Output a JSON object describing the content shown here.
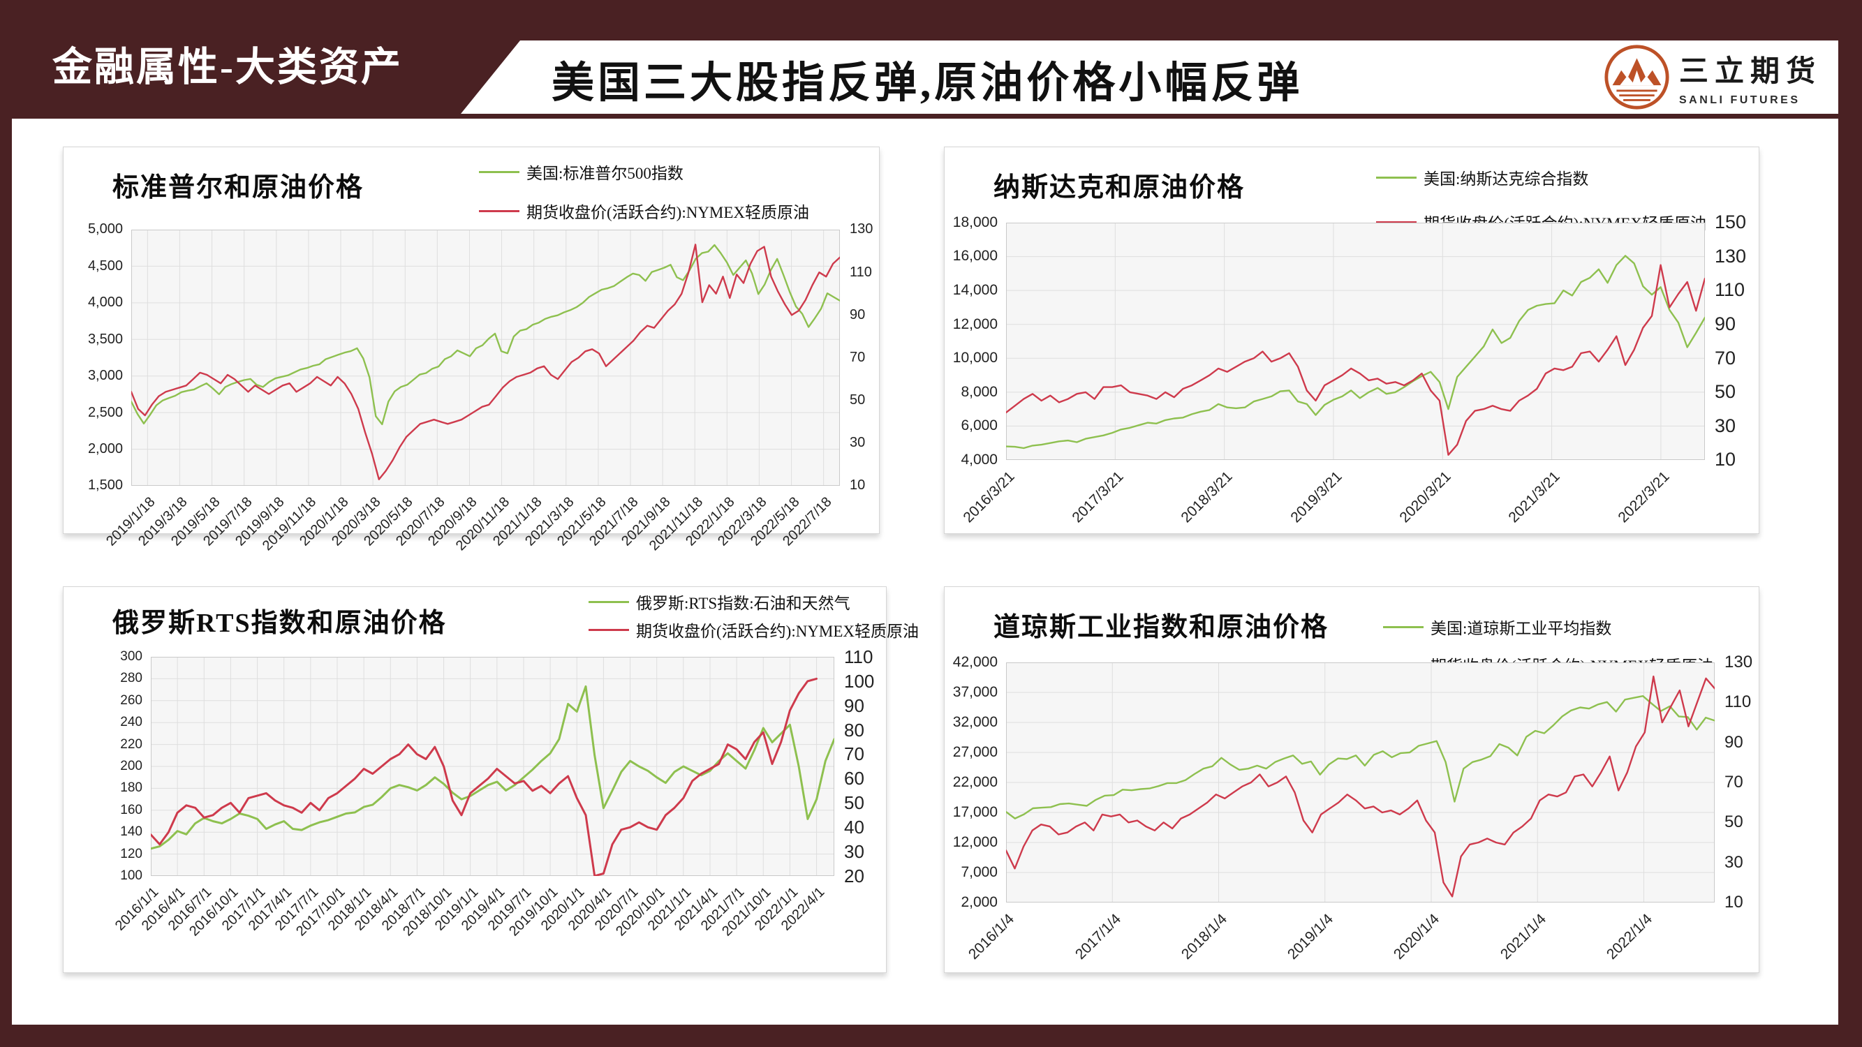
{
  "theme": {
    "maroon": "#4a2123",
    "panel_border": "#d6d6d6",
    "plot_background": "#f6f6f6",
    "grid_color": "#dedede",
    "frame_color": "#c9c9c9",
    "green": "#8ec04f",
    "red": "#ce3a4c"
  },
  "header": {
    "section_label": "金融属性-大类资产",
    "title": "美国三大股指反弹,原油价格小幅反弹",
    "logo_cn": "三立期货",
    "logo_en": "SANLI FUTURES",
    "logo_icon": "mountain-sun-logo-icon",
    "logo_color": "#bd5127"
  },
  "chart_data": [
    {
      "id": "sp500-vs-oil",
      "type": "line",
      "title": "标准普尔和原油价格",
      "legend_position": "top-right",
      "grid": true,
      "left_range": [
        1500,
        5000
      ],
      "right_range": [
        10,
        130
      ],
      "left_axis_ticks": [
        "5,000",
        "4,500",
        "4,000",
        "3,500",
        "3,000",
        "2,500",
        "2,000",
        "1,500"
      ],
      "right_axis_ticks": [
        "130",
        "110",
        "90",
        "70",
        "50",
        "30",
        "10"
      ],
      "x_labels": [
        "2019/1/18",
        "2019/3/18",
        "2019/5/18",
        "2019/7/18",
        "2019/9/18",
        "2019/11/18",
        "2020/1/18",
        "2020/3/18",
        "2020/5/18",
        "2020/7/18",
        "2020/9/18",
        "2020/11/18",
        "2021/1/18",
        "2021/3/18",
        "2021/5/18",
        "2021/7/18",
        "2021/9/18",
        "2021/11/18",
        "2022/1/18",
        "2022/3/18",
        "2022/5/18",
        "2022/7/18"
      ],
      "series": [
        {
          "id": "sp500-line",
          "label": "美国:标准普尔500指数",
          "color": "#8ec04f",
          "axis": "left",
          "values": [
            2650,
            2480,
            2351,
            2470,
            2600,
            2665,
            2700,
            2730,
            2780,
            2800,
            2815,
            2860,
            2900,
            2830,
            2750,
            2850,
            2890,
            2920,
            2945,
            2960,
            2880,
            2850,
            2920,
            2970,
            2990,
            3010,
            3050,
            3090,
            3110,
            3140,
            3160,
            3230,
            3260,
            3290,
            3320,
            3340,
            3380,
            3240,
            2980,
            2450,
            2340,
            2650,
            2790,
            2850,
            2880,
            2950,
            3020,
            3040,
            3100,
            3130,
            3230,
            3270,
            3350,
            3310,
            3270,
            3380,
            3420,
            3510,
            3580,
            3340,
            3310,
            3540,
            3620,
            3640,
            3700,
            3730,
            3780,
            3810,
            3830,
            3870,
            3900,
            3940,
            4000,
            4080,
            4130,
            4180,
            4200,
            4230,
            4290,
            4350,
            4400,
            4380,
            4300,
            4420,
            4450,
            4480,
            4520,
            4350,
            4310,
            4440,
            4600,
            4680,
            4700,
            4790,
            4680,
            4550,
            4380,
            4480,
            4580,
            4400,
            4120,
            4250,
            4450,
            4600,
            4380,
            4150,
            3950,
            3850,
            3670,
            3790,
            3920,
            4130,
            4080,
            4030
          ]
        },
        {
          "id": "nymex-oil-line",
          "label": "期货收盘价(活跃合约):NYMEX轻质原油",
          "color": "#ce3a4c",
          "axis": "right",
          "values": [
            54,
            46,
            43,
            48,
            52,
            54,
            55,
            56,
            57,
            60,
            63,
            62,
            60,
            58,
            62,
            60,
            57,
            54,
            57,
            55,
            53,
            55,
            57,
            58,
            54,
            56,
            58,
            61,
            59,
            57,
            61,
            58,
            53,
            46,
            35,
            25,
            13,
            17,
            22,
            28,
            33,
            36,
            39,
            40,
            41,
            40,
            39,
            40,
            41,
            43,
            45,
            47,
            48,
            52,
            56,
            59,
            61,
            62,
            63,
            65,
            66,
            62,
            60,
            64,
            68,
            70,
            73,
            74,
            72,
            66,
            69,
            72,
            75,
            78,
            82,
            85,
            84,
            88,
            92,
            95,
            100,
            110,
            123,
            96,
            104,
            100,
            108,
            98,
            109,
            105,
            114,
            120,
            122,
            108,
            101,
            95,
            90,
            92,
            97,
            104,
            110,
            108,
            114,
            117
          ]
        }
      ]
    },
    {
      "id": "nasdaq-vs-oil",
      "type": "line",
      "title": "纳斯达克和原油价格",
      "legend_position": "top-right",
      "grid": true,
      "left_range": [
        4000,
        18000
      ],
      "right_range": [
        10,
        150
      ],
      "left_axis_ticks": [
        "18,000",
        "16,000",
        "14,000",
        "12,000",
        "10,000",
        "8,000",
        "6,000",
        "4,000"
      ],
      "right_axis_ticks": [
        "150",
        "130",
        "110",
        "90",
        "70",
        "50",
        "30",
        "10"
      ],
      "x_labels": [
        "2016/3/21",
        "2017/3/21",
        "2018/3/21",
        "2019/3/21",
        "2020/3/21",
        "2021/3/21",
        "2022/3/21"
      ],
      "series": [
        {
          "id": "nasdaq-line",
          "label": "美国:纳斯达克综合指数",
          "color": "#8ec04f",
          "axis": "left",
          "values": [
            4800,
            4780,
            4700,
            4850,
            4900,
            5000,
            5100,
            5150,
            5050,
            5250,
            5350,
            5450,
            5600,
            5800,
            5900,
            6050,
            6200,
            6150,
            6350,
            6450,
            6500,
            6700,
            6850,
            6950,
            7300,
            7100,
            7050,
            7100,
            7450,
            7600,
            7750,
            8050,
            8100,
            7450,
            7300,
            6650,
            7250,
            7550,
            7750,
            8100,
            7650,
            8000,
            8250,
            7900,
            8000,
            8300,
            8650,
            8950,
            9200,
            8600,
            7000,
            8900,
            9500,
            10100,
            10700,
            11700,
            10900,
            11200,
            12200,
            12850,
            13100,
            13200,
            13250,
            14000,
            13700,
            14500,
            14750,
            15250,
            14450,
            15500,
            16050,
            15600,
            14250,
            13750,
            14200,
            12850,
            12100,
            10650,
            11500,
            12400
          ]
        },
        {
          "id": "nymex-oil-line",
          "label": "期货收盘价(活跃合约):NYMEX轻质原油",
          "color": "#ce3a4c",
          "axis": "right",
          "values": [
            38,
            42,
            46,
            49,
            45,
            48,
            44,
            46,
            49,
            50,
            46,
            53,
            53,
            54,
            50,
            49,
            48,
            46,
            50,
            47,
            52,
            54,
            57,
            60,
            64,
            62,
            65,
            68,
            70,
            74,
            68,
            70,
            73,
            65,
            51,
            45,
            54,
            57,
            60,
            64,
            61,
            57,
            58,
            55,
            56,
            54,
            57,
            61,
            51,
            45,
            13,
            19,
            33,
            39,
            40,
            42,
            40,
            39,
            45,
            48,
            52,
            61,
            64,
            63,
            65,
            73,
            74,
            68,
            75,
            83,
            66,
            75,
            88,
            95,
            125,
            100,
            108,
            115,
            98,
            117
          ]
        }
      ]
    },
    {
      "id": "rts-oilgas-vs-oil",
      "type": "line",
      "title": "俄罗斯RTS指数和原油价格",
      "legend_position": "top-right",
      "grid": true,
      "left_range": [
        100,
        300
      ],
      "right_range": [
        20,
        110
      ],
      "left_axis_ticks": [
        "300",
        "280",
        "260",
        "240",
        "220",
        "200",
        "180",
        "160",
        "140",
        "120",
        "100"
      ],
      "right_axis_ticks": [
        "110",
        "100",
        "90",
        "80",
        "70",
        "60",
        "50",
        "40",
        "30",
        "20"
      ],
      "x_labels": [
        "2016/1/1",
        "2016/4/1",
        "2016/7/1",
        "2016/10/1",
        "2017/1/1",
        "2017/4/1",
        "2017/7/1",
        "2017/10/1",
        "2018/1/1",
        "2018/4/1",
        "2018/7/1",
        "2018/10/1",
        "2019/1/1",
        "2019/4/1",
        "2019/7/1",
        "2019/10/1",
        "2020/1/1",
        "2020/4/1",
        "2020/7/1",
        "2020/10/1",
        "2021/1/1",
        "2021/4/1",
        "2021/7/1",
        "2021/10/1",
        "2022/1/1",
        "2022/4/1"
      ],
      "series": [
        {
          "id": "rts-oilgas-line",
          "label": "俄罗斯:RTS指数:石油和天然气",
          "color": "#8ec04f",
          "axis": "left",
          "values": [
            125,
            127,
            133,
            141,
            138,
            148,
            153,
            150,
            148,
            152,
            157,
            155,
            152,
            143,
            147,
            150,
            143,
            142,
            146,
            149,
            151,
            154,
            157,
            158,
            163,
            165,
            172,
            180,
            183,
            181,
            178,
            183,
            190,
            184,
            176,
            170,
            173,
            178,
            183,
            186,
            178,
            183,
            190,
            197,
            205,
            212,
            225,
            257,
            250,
            273,
            210,
            162,
            178,
            195,
            205,
            200,
            196,
            190,
            185,
            195,
            200,
            196,
            192,
            196,
            205,
            212,
            205,
            198,
            215,
            235,
            222,
            230,
            238,
            200,
            152,
            170,
            205,
            225
          ]
        },
        {
          "id": "nymex-oil-line",
          "label": "期货收盘价(活跃合约):NYMEX轻质原油",
          "color": "#ce3a4c",
          "axis": "right",
          "span": 0.974,
          "values": [
            37,
            33,
            38,
            46,
            49,
            48,
            44,
            45,
            48,
            50,
            46,
            52,
            53,
            54,
            51,
            49,
            48,
            46,
            50,
            47,
            52,
            54,
            57,
            60,
            64,
            62,
            65,
            68,
            70,
            74,
            70,
            68,
            73,
            65,
            51,
            45,
            54,
            57,
            60,
            64,
            61,
            58,
            59,
            55,
            57,
            54,
            58,
            61,
            52,
            45,
            20,
            21,
            33,
            39,
            40,
            42,
            40,
            39,
            45,
            48,
            52,
            59,
            62,
            64,
            66,
            74,
            72,
            68,
            75,
            79,
            66,
            75,
            88,
            95,
            100,
            101
          ]
        }
      ]
    },
    {
      "id": "dow-vs-oil",
      "type": "line",
      "title": "道琼斯工业指数和原油价格",
      "legend_position": "top-right",
      "grid": true,
      "left_range": [
        2000,
        42000
      ],
      "right_range": [
        10,
        130
      ],
      "left_axis_ticks": [
        "42,000",
        "37,000",
        "32,000",
        "27,000",
        "22,000",
        "17,000",
        "12,000",
        "7,000",
        "2,000"
      ],
      "right_axis_ticks": [
        "130",
        "110",
        "90",
        "70",
        "50",
        "30",
        "10"
      ],
      "x_labels": [
        "2016/1/4",
        "2017/1/4",
        "2018/1/4",
        "2019/1/4",
        "2020/1/4",
        "2021/1/4",
        "2022/1/4"
      ],
      "series": [
        {
          "id": "dow-line",
          "label": "美国:道琼斯工业平均指数",
          "color": "#8ec04f",
          "axis": "left",
          "values": [
            17100,
            16000,
            16700,
            17700,
            17800,
            17900,
            18400,
            18500,
            18300,
            18100,
            19100,
            19800,
            19900,
            20800,
            20700,
            20900,
            21000,
            21400,
            21900,
            21900,
            22400,
            23400,
            24300,
            24700,
            26100,
            25000,
            24100,
            24300,
            24800,
            24300,
            25400,
            26000,
            26500,
            25100,
            25500,
            23300,
            25000,
            26000,
            25900,
            26500,
            24800,
            26600,
            27200,
            26200,
            26900,
            27000,
            28100,
            28500,
            28900,
            25400,
            18800,
            24300,
            25400,
            25800,
            26400,
            28400,
            27800,
            26500,
            29600,
            30600,
            30200,
            31500,
            33000,
            34000,
            34500,
            34300,
            35000,
            35400,
            33800,
            35800,
            36100,
            36400,
            35100,
            33900,
            34700,
            33000,
            32900,
            30800,
            32800,
            32300
          ]
        },
        {
          "id": "nymex-oil-line",
          "label": "期货收盘价(活跃合约):NYMEX轻质原油",
          "color": "#ce3a4c",
          "axis": "right",
          "values": [
            36,
            27,
            38,
            46,
            49,
            48,
            44,
            45,
            48,
            50,
            46,
            54,
            53,
            54,
            50,
            51,
            48,
            46,
            50,
            47,
            52,
            54,
            57,
            60,
            64,
            62,
            65,
            68,
            70,
            74,
            68,
            70,
            73,
            65,
            51,
            45,
            54,
            57,
            60,
            64,
            61,
            57,
            58,
            55,
            56,
            54,
            57,
            61,
            51,
            45,
            20,
            13,
            33,
            39,
            40,
            42,
            40,
            39,
            45,
            48,
            52,
            61,
            64,
            63,
            65,
            73,
            74,
            68,
            75,
            83,
            66,
            75,
            88,
            95,
            123,
            100,
            108,
            116,
            98,
            110,
            122,
            117
          ]
        }
      ]
    }
  ]
}
